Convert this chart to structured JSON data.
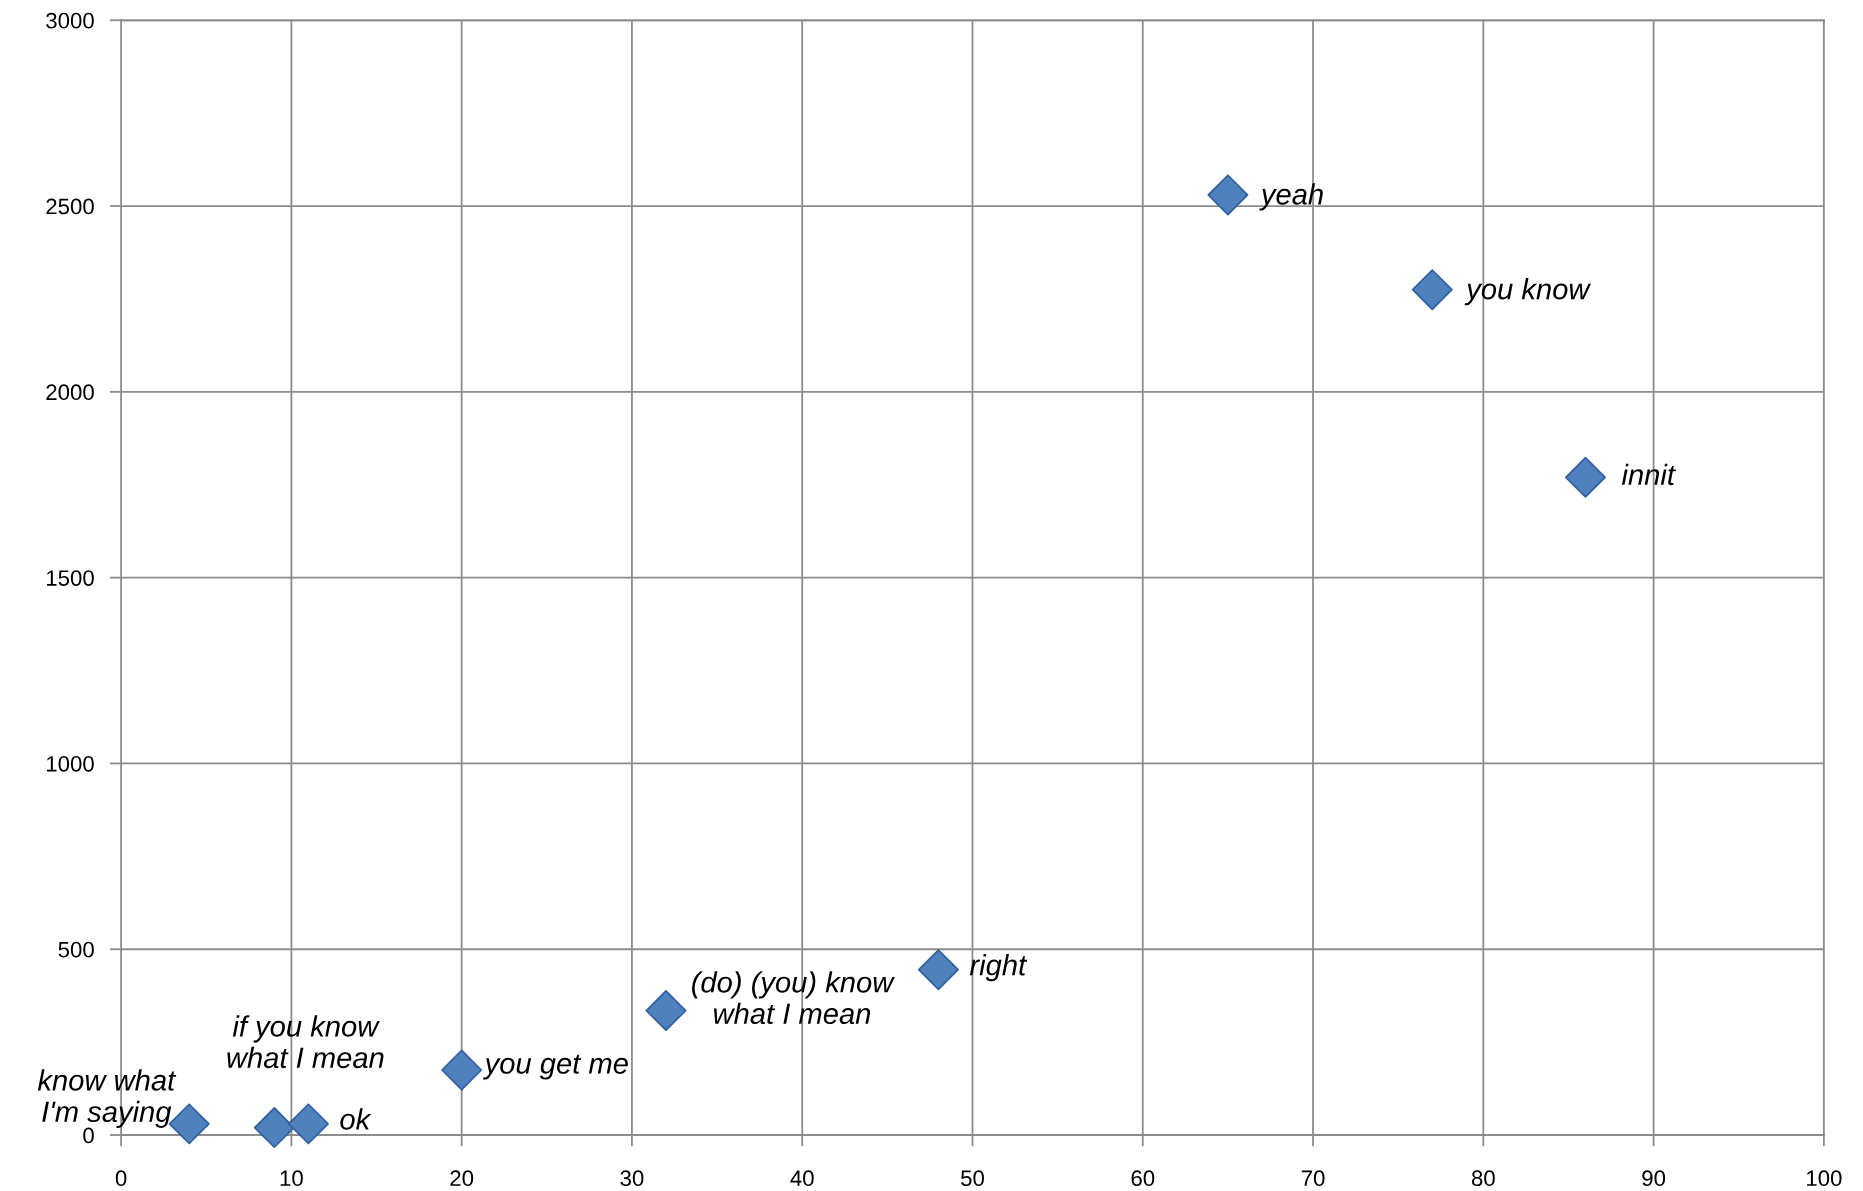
{
  "chart_data": {
    "type": "scatter",
    "x": [
      4,
      9,
      11,
      20,
      32,
      48,
      65,
      77,
      86
    ],
    "values": [
      30,
      20,
      30,
      175,
      335,
      445,
      2530,
      2275,
      1770
    ],
    "color": "#4f81bd",
    "marker": "diamond",
    "xlim": [
      0,
      100
    ],
    "xticks": [
      0,
      10,
      20,
      30,
      40,
      50,
      60,
      70,
      80,
      90,
      100
    ],
    "ylim": [
      0,
      3000
    ],
    "yticks": [
      0,
      500,
      1000,
      1500,
      2000,
      2500,
      3000
    ],
    "grid": true,
    "annotations": [
      {
        "text": "know what\nI'm saying",
        "x": 4,
        "y": 30
      },
      {
        "text": "if you know\nwhat I mean",
        "x": 9,
        "y": 20
      },
      {
        "text": "ok",
        "x": 11,
        "y": 30
      },
      {
        "text": "you get me",
        "x": 20,
        "y": 175
      },
      {
        "text": "(do) (you) know\nwhat I mean",
        "x": 32,
        "y": 335
      },
      {
        "text": "right",
        "x": 48,
        "y": 445
      },
      {
        "text": "yeah",
        "x": 65,
        "y": 2530
      },
      {
        "text": "you know",
        "x": 77,
        "y": 2275
      },
      {
        "text": "innit",
        "x": 86,
        "y": 1770
      }
    ]
  }
}
